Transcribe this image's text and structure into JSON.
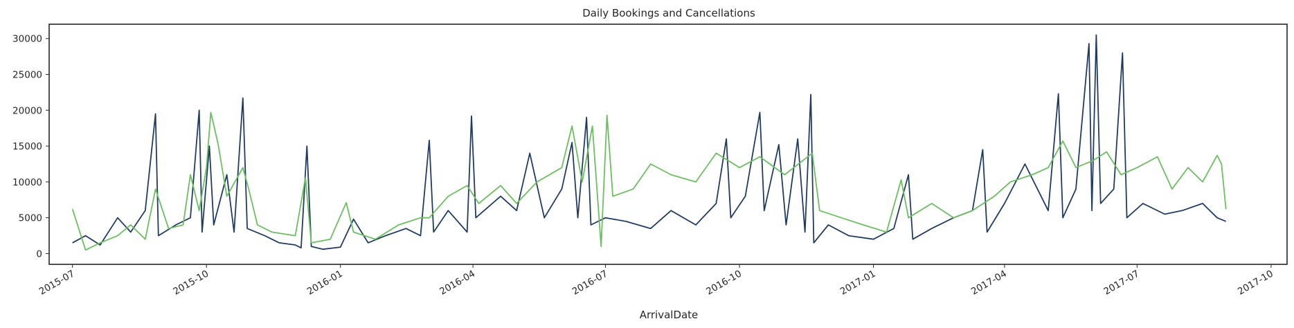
{
  "chart_data": {
    "type": "line",
    "title": "Daily Bookings and Cancellations",
    "xlabel": "ArrivalDate",
    "ylabel": "",
    "x_range": [
      "2015-06-15",
      "2017-10-12"
    ],
    "ylim": [
      -1500,
      32000
    ],
    "yticks": [
      0,
      5000,
      10000,
      15000,
      20000,
      25000,
      30000
    ],
    "xticks": [
      "2015-07",
      "2015-10",
      "2016-01",
      "2016-04",
      "2016-07",
      "2016-10",
      "2017-01",
      "2017-04",
      "2017-07",
      "2017-10"
    ],
    "grid": false,
    "legend": "none",
    "series": [
      {
        "color": "#1f3b63",
        "points": [
          [
            "2015-07-01",
            1500
          ],
          [
            "2015-07-10",
            2500
          ],
          [
            "2015-07-20",
            1200
          ],
          [
            "2015-08-01",
            5000
          ],
          [
            "2015-08-10",
            3000
          ],
          [
            "2015-08-20",
            6000
          ],
          [
            "2015-08-27",
            19500
          ],
          [
            "2015-08-29",
            2500
          ],
          [
            "2015-09-10",
            4000
          ],
          [
            "2015-09-20",
            5000
          ],
          [
            "2015-09-26",
            20000
          ],
          [
            "2015-09-28",
            3000
          ],
          [
            "2015-10-03",
            15000
          ],
          [
            "2015-10-06",
            4000
          ],
          [
            "2015-10-15",
            11000
          ],
          [
            "2015-10-20",
            3000
          ],
          [
            "2015-10-26",
            21700
          ],
          [
            "2015-10-29",
            3500
          ],
          [
            "2015-11-10",
            2500
          ],
          [
            "2015-11-20",
            1500
          ],
          [
            "2015-12-01",
            1200
          ],
          [
            "2015-12-05",
            800
          ],
          [
            "2015-12-09",
            15000
          ],
          [
            "2015-12-12",
            1000
          ],
          [
            "2015-12-20",
            600
          ],
          [
            "2016-01-01",
            900
          ],
          [
            "2016-01-10",
            4800
          ],
          [
            "2016-01-20",
            1500
          ],
          [
            "2016-02-01",
            2500
          ],
          [
            "2016-02-15",
            3500
          ],
          [
            "2016-02-25",
            2500
          ],
          [
            "2016-03-02",
            15800
          ],
          [
            "2016-03-05",
            3000
          ],
          [
            "2016-03-15",
            6000
          ],
          [
            "2016-03-28",
            3000
          ],
          [
            "2016-03-31",
            19200
          ],
          [
            "2016-04-03",
            5000
          ],
          [
            "2016-04-20",
            8000
          ],
          [
            "2016-05-01",
            6000
          ],
          [
            "2016-05-10",
            14000
          ],
          [
            "2016-05-20",
            5000
          ],
          [
            "2016-06-01",
            9000
          ],
          [
            "2016-06-08",
            15500
          ],
          [
            "2016-06-12",
            5000
          ],
          [
            "2016-06-18",
            19000
          ],
          [
            "2016-06-21",
            4000
          ],
          [
            "2016-07-01",
            5000
          ],
          [
            "2016-07-15",
            4500
          ],
          [
            "2016-08-01",
            3500
          ],
          [
            "2016-08-15",
            6000
          ],
          [
            "2016-09-01",
            4000
          ],
          [
            "2016-09-15",
            7000
          ],
          [
            "2016-09-22",
            16000
          ],
          [
            "2016-09-25",
            5000
          ],
          [
            "2016-10-05",
            8000
          ],
          [
            "2016-10-15",
            19700
          ],
          [
            "2016-10-18",
            6000
          ],
          [
            "2016-10-28",
            15200
          ],
          [
            "2016-11-02",
            4000
          ],
          [
            "2016-11-10",
            16000
          ],
          [
            "2016-11-15",
            3000
          ],
          [
            "2016-11-19",
            22200
          ],
          [
            "2016-11-21",
            1500
          ],
          [
            "2016-12-01",
            4000
          ],
          [
            "2016-12-15",
            2500
          ],
          [
            "2017-01-01",
            2000
          ],
          [
            "2017-01-15",
            3500
          ],
          [
            "2017-01-25",
            11000
          ],
          [
            "2017-01-28",
            2000
          ],
          [
            "2017-02-10",
            3500
          ],
          [
            "2017-02-25",
            5000
          ],
          [
            "2017-03-10",
            6000
          ],
          [
            "2017-03-17",
            14500
          ],
          [
            "2017-03-20",
            3000
          ],
          [
            "2017-04-01",
            7000
          ],
          [
            "2017-04-15",
            12500
          ],
          [
            "2017-05-01",
            6000
          ],
          [
            "2017-05-08",
            22300
          ],
          [
            "2017-05-11",
            5000
          ],
          [
            "2017-05-20",
            9000
          ],
          [
            "2017-05-29",
            29300
          ],
          [
            "2017-05-31",
            6000
          ],
          [
            "2017-06-03",
            30500
          ],
          [
            "2017-06-06",
            7000
          ],
          [
            "2017-06-15",
            9000
          ],
          [
            "2017-06-21",
            28000
          ],
          [
            "2017-06-24",
            5000
          ],
          [
            "2017-07-05",
            7000
          ],
          [
            "2017-07-20",
            5500
          ],
          [
            "2017-08-01",
            6000
          ],
          [
            "2017-08-15",
            7000
          ],
          [
            "2017-08-25",
            5000
          ],
          [
            "2017-08-31",
            4500
          ]
        ]
      },
      {
        "color": "#6abf5e",
        "points": [
          [
            "2015-07-01",
            6200
          ],
          [
            "2015-07-10",
            500
          ],
          [
            "2015-07-20",
            1500
          ],
          [
            "2015-08-01",
            2500
          ],
          [
            "2015-08-10",
            4000
          ],
          [
            "2015-08-20",
            2000
          ],
          [
            "2015-08-27",
            9000
          ],
          [
            "2015-09-05",
            3500
          ],
          [
            "2015-09-15",
            4000
          ],
          [
            "2015-09-20",
            11000
          ],
          [
            "2015-09-26",
            6000
          ],
          [
            "2015-10-01",
            12000
          ],
          [
            "2015-10-04",
            19700
          ],
          [
            "2015-10-09",
            15300
          ],
          [
            "2015-10-15",
            8000
          ],
          [
            "2015-10-26",
            12000
          ],
          [
            "2015-10-30",
            9000
          ],
          [
            "2015-11-05",
            4000
          ],
          [
            "2015-11-15",
            3000
          ],
          [
            "2015-12-01",
            2500
          ],
          [
            "2015-12-08",
            10600
          ],
          [
            "2015-12-12",
            1500
          ],
          [
            "2015-12-25",
            2000
          ],
          [
            "2016-01-05",
            7100
          ],
          [
            "2016-01-10",
            3000
          ],
          [
            "2016-01-25",
            2000
          ],
          [
            "2016-02-10",
            4000
          ],
          [
            "2016-02-25",
            5000
          ],
          [
            "2016-03-02",
            5000
          ],
          [
            "2016-03-15",
            8000
          ],
          [
            "2016-03-28",
            9500
          ],
          [
            "2016-04-05",
            7000
          ],
          [
            "2016-04-20",
            9500
          ],
          [
            "2016-05-01",
            7000
          ],
          [
            "2016-05-15",
            10000
          ],
          [
            "2016-06-01",
            12000
          ],
          [
            "2016-06-08",
            17800
          ],
          [
            "2016-06-15",
            10000
          ],
          [
            "2016-06-22",
            17800
          ],
          [
            "2016-06-28",
            1000
          ],
          [
            "2016-07-02",
            19300
          ],
          [
            "2016-07-06",
            8000
          ],
          [
            "2016-07-20",
            9000
          ],
          [
            "2016-08-01",
            12500
          ],
          [
            "2016-08-15",
            11000
          ],
          [
            "2016-09-01",
            10000
          ],
          [
            "2016-09-15",
            14000
          ],
          [
            "2016-10-01",
            12000
          ],
          [
            "2016-10-15",
            13500
          ],
          [
            "2016-11-01",
            11000
          ],
          [
            "2016-11-20",
            14000
          ],
          [
            "2016-11-25",
            6000
          ],
          [
            "2016-12-10",
            5000
          ],
          [
            "2016-12-25",
            4000
          ],
          [
            "2017-01-10",
            3000
          ],
          [
            "2017-01-20",
            10300
          ],
          [
            "2017-01-25",
            5000
          ],
          [
            "2017-02-10",
            7000
          ],
          [
            "2017-02-25",
            5000
          ],
          [
            "2017-03-10",
            6000
          ],
          [
            "2017-03-25",
            8000
          ],
          [
            "2017-04-05",
            10000
          ],
          [
            "2017-04-20",
            11000
          ],
          [
            "2017-05-01",
            12000
          ],
          [
            "2017-05-11",
            15700
          ],
          [
            "2017-05-20",
            12000
          ],
          [
            "2017-06-01",
            13000
          ],
          [
            "2017-06-10",
            14200
          ],
          [
            "2017-06-20",
            11000
          ],
          [
            "2017-07-01",
            12000
          ],
          [
            "2017-07-15",
            13500
          ],
          [
            "2017-07-25",
            9000
          ],
          [
            "2017-08-05",
            12000
          ],
          [
            "2017-08-15",
            10000
          ],
          [
            "2017-08-25",
            13700
          ],
          [
            "2017-08-28",
            12500
          ],
          [
            "2017-08-31",
            6200
          ]
        ]
      }
    ]
  }
}
